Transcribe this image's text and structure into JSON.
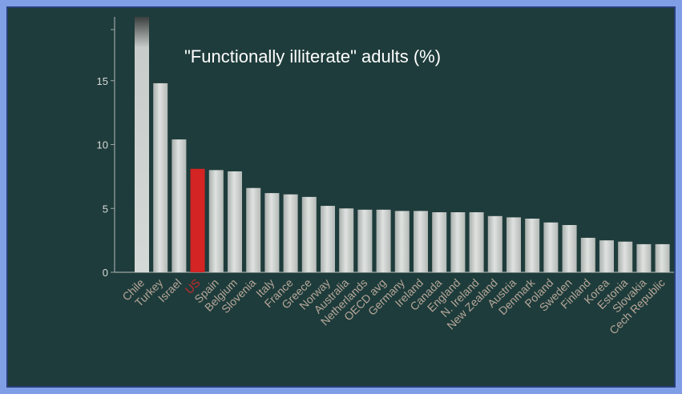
{
  "chart_data": {
    "type": "bar",
    "title": "\"Functionally illiterate\" adults (%)",
    "xlabel": "",
    "ylabel": "",
    "ylim": [
      0,
      20
    ],
    "yticks": [
      0,
      5,
      10,
      15
    ],
    "categories": [
      "Chile",
      "Turkey",
      "Israel",
      "US",
      "Spain",
      "Belgium",
      "Slovenia",
      "Italy",
      "France",
      "Greece",
      "Norway",
      "Australia",
      "Netherlands",
      "OECD avg",
      "Germany",
      "Ireland",
      "Canada",
      "England",
      "N. Ireland",
      "New Zealand",
      "Austria",
      "Denmark",
      "Poland",
      "Sweden",
      "Finland",
      "Korea",
      "Estonia",
      "Slovakia",
      "Cech Republic"
    ],
    "values": [
      20,
      14.8,
      10.4,
      8.1,
      8.0,
      7.9,
      6.6,
      6.2,
      6.1,
      5.9,
      5.2,
      5.0,
      4.9,
      4.9,
      4.8,
      4.8,
      4.7,
      4.7,
      4.7,
      4.4,
      4.3,
      4.2,
      3.9,
      3.7,
      2.7,
      2.5,
      2.4,
      2.2,
      2.2
    ],
    "highlight": "US",
    "grid": false,
    "legend": "none"
  },
  "colors": {
    "background": "#1e3c3b",
    "bar": "#c9cdcb",
    "highlight": "#d42424",
    "axis": "#9aa5a3",
    "tick_label": "#d8dcda",
    "category_label": "#b7a79a",
    "highlight_label": "#cc2a2a",
    "title": "#ffffff"
  }
}
